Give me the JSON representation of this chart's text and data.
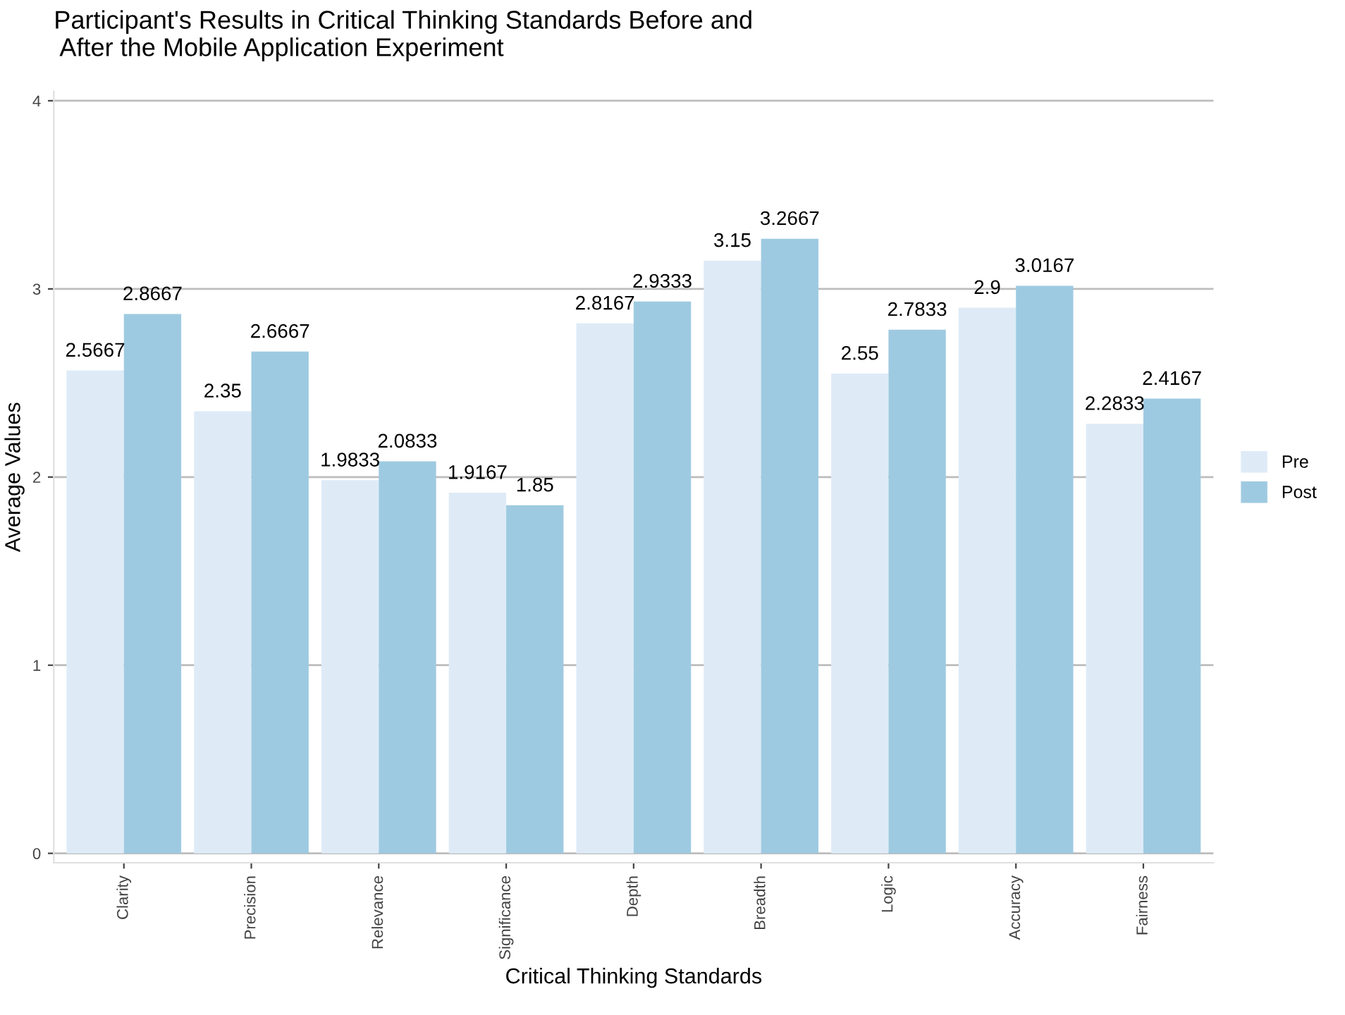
{
  "chart_data": {
    "type": "bar",
    "title": "Participant's Results in Critical Thinking Standards Before and\n After the Mobile Application Experiment",
    "xlabel": "Critical Thinking Standards",
    "ylabel": "Average Values",
    "categories": [
      "Clarity",
      "Precision",
      "Relevance",
      "Significance",
      "Depth",
      "Breadth",
      "Logic",
      "Accuracy",
      "Fairness"
    ],
    "series": [
      {
        "name": "Pre",
        "color": "#deebf7",
        "values": [
          2.5667,
          2.35,
          1.9833,
          1.9167,
          2.8167,
          3.15,
          2.55,
          2.9,
          2.2833
        ]
      },
      {
        "name": "Post",
        "color": "#9ecae1",
        "values": [
          2.8667,
          2.6667,
          2.0833,
          1.85,
          2.9333,
          3.2667,
          2.7833,
          3.0167,
          2.4167
        ]
      }
    ],
    "ylim": [
      -0.05,
      4.05
    ],
    "yticks": [
      0,
      1,
      2,
      3,
      4
    ],
    "grid": "y",
    "legend": "right",
    "data_labels": true
  }
}
